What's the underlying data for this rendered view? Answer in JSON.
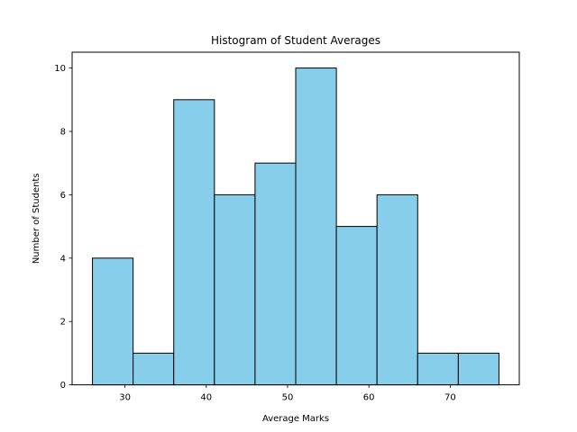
{
  "chart_data": {
    "type": "bar",
    "title": "Histogram of Student Averages",
    "xlabel": "Average Marks",
    "ylabel": "Number of Students",
    "bin_edges": [
      26,
      31,
      36,
      41,
      46,
      51,
      56,
      61,
      66,
      71,
      76
    ],
    "values": [
      4,
      1,
      9,
      6,
      7,
      10,
      5,
      6,
      1,
      1
    ],
    "xlim": [
      23.5,
      78.5
    ],
    "ylim": [
      0,
      10.5
    ],
    "xticks": [
      30,
      40,
      50,
      60,
      70
    ],
    "yticks": [
      0,
      2,
      4,
      6,
      8,
      10
    ],
    "bar_color": "#87ceeb",
    "edge_color": "#000000",
    "grid": false,
    "legend": "none"
  }
}
